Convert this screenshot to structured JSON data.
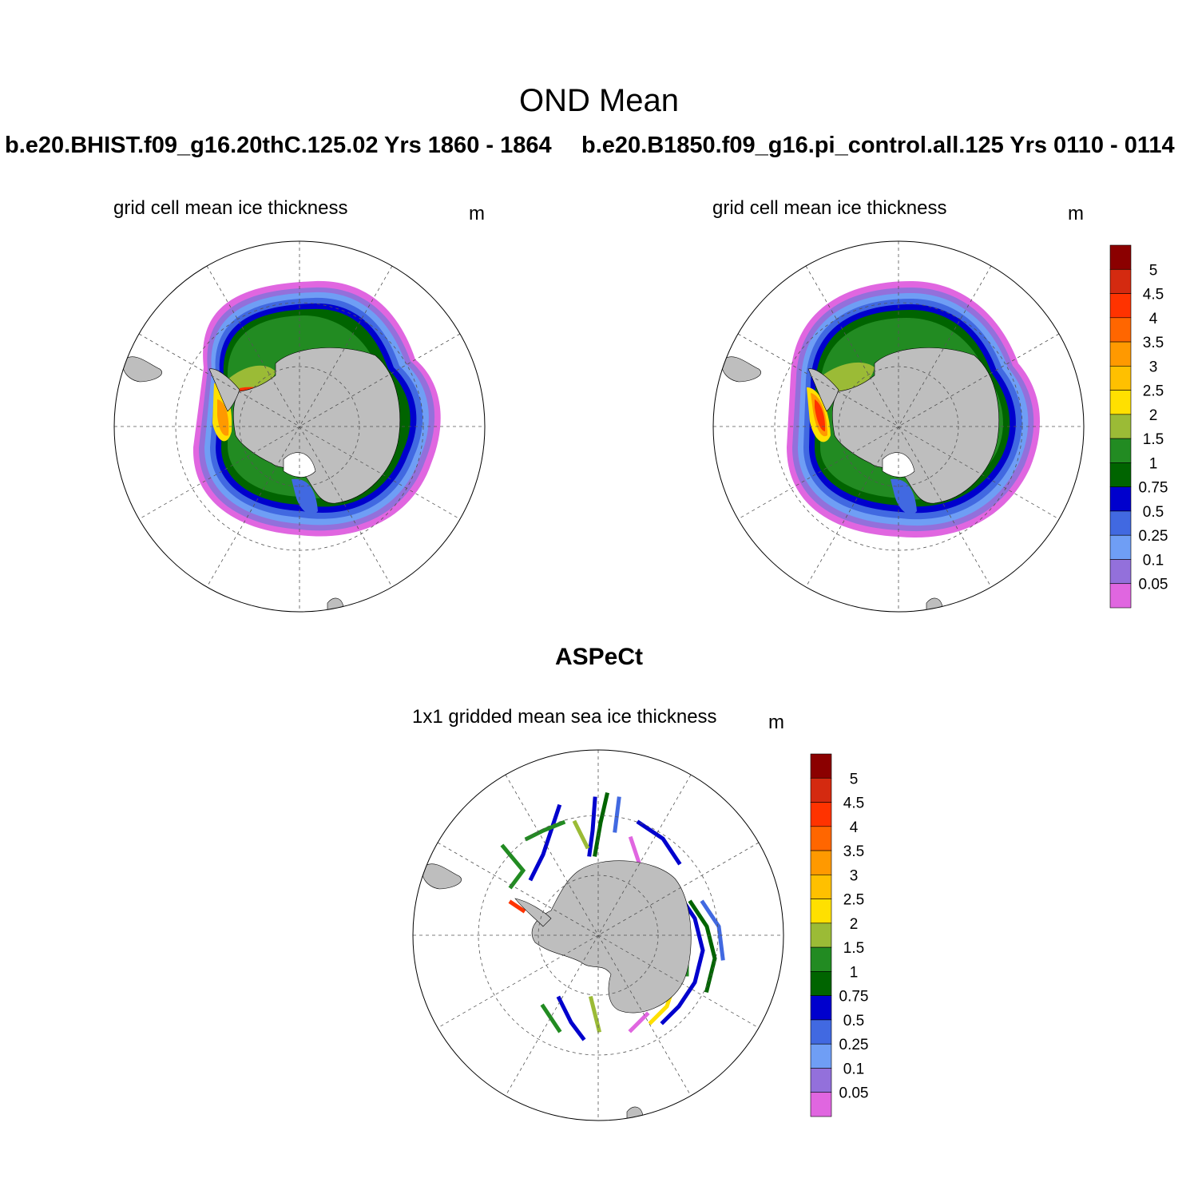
{
  "title": "OND Mean",
  "cases": [
    {
      "label": "b.e20.BHIST.f09_g16.20thC.125.02  Yrs 1860 - 1864"
    },
    {
      "label": "b.e20.B1850.f09_g16.pi_control.all.125  Yrs 0110 - 0114"
    }
  ],
  "panels": [
    {
      "subtitle": "grid cell mean ice thickness",
      "units": "m"
    },
    {
      "subtitle": "grid cell mean ice thickness",
      "units": "m"
    },
    {
      "subtitle": "1x1 gridded mean sea ice thickness",
      "units": "m"
    }
  ],
  "obs_title": "ASPeCt",
  "colorbar": {
    "labels": [
      "5",
      "4.5",
      "4",
      "3.5",
      "3",
      "2.5",
      "2",
      "1.5",
      "1",
      "0.75",
      "0.5",
      "0.25",
      "0.1",
      "0.05"
    ],
    "colors": [
      "#8b0000",
      "#d42a10",
      "#ff3300",
      "#ff6600",
      "#ff9900",
      "#ffc000",
      "#ffe000",
      "#9bbb36",
      "#228b22",
      "#006400",
      "#0000cd",
      "#4169e1",
      "#6f9ef5",
      "#9370db",
      "#e066e0"
    ]
  },
  "map_colors": {
    "land": "#bebebe",
    "ocean": "#ffffff",
    "grid": "#555555"
  }
}
